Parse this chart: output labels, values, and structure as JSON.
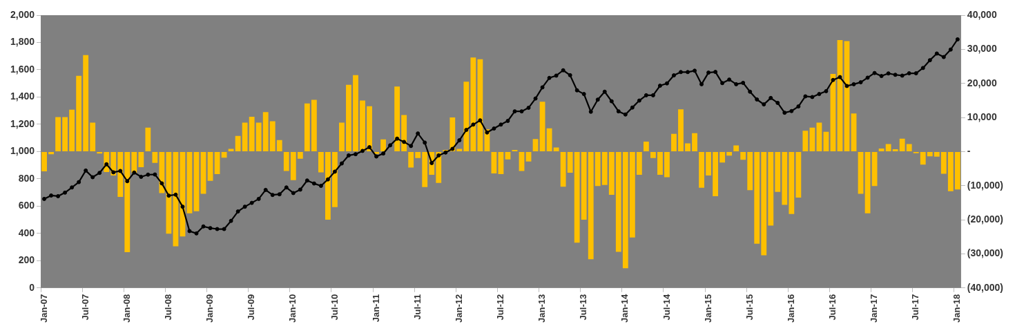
{
  "chart_data": {
    "type": "bar",
    "categories": [
      "Jan-07",
      null,
      null,
      null,
      null,
      null,
      "Jul-07",
      null,
      null,
      null,
      null,
      null,
      "Jan-08",
      null,
      null,
      null,
      null,
      null,
      "Jul-08",
      null,
      null,
      null,
      null,
      null,
      "Jan-09",
      null,
      null,
      null,
      null,
      null,
      "Jul-09",
      null,
      null,
      null,
      null,
      null,
      "Jan-10",
      null,
      null,
      null,
      null,
      null,
      "Jul-10",
      null,
      null,
      null,
      null,
      null,
      "Jan-11",
      null,
      null,
      null,
      null,
      null,
      "Jul-11",
      null,
      null,
      null,
      null,
      null,
      "Jan-12",
      null,
      null,
      null,
      null,
      null,
      "Jul-12",
      null,
      null,
      null,
      null,
      null,
      "Jan-13",
      null,
      null,
      null,
      null,
      null,
      "Jul-13",
      null,
      null,
      null,
      null,
      null,
      "Jan-14",
      null,
      null,
      null,
      null,
      null,
      "Jul-14",
      null,
      null,
      null,
      null,
      null,
      "Jan-15",
      null,
      null,
      null,
      null,
      null,
      "Jul-15",
      null,
      null,
      null,
      null,
      null,
      "Jan-16",
      null,
      null,
      null,
      null,
      null,
      "Jul-16",
      null,
      null,
      null,
      null,
      null,
      "Jan-17",
      null,
      null,
      null,
      null,
      null,
      "Jul-17",
      null,
      null,
      null,
      null,
      null,
      "Jan-18"
    ],
    "series": [
      {
        "axis": "y2",
        "color": "#ffc000",
        "values": [
          -5800,
          -800,
          10100,
          10100,
          12300,
          22200,
          28300,
          8500,
          -600,
          -6000,
          -7000,
          -13300,
          -29500,
          -6200,
          -4600,
          7000,
          -3300,
          -12200,
          -24100,
          -27800,
          -24900,
          -18100,
          -17500,
          -12400,
          -8600,
          -6600,
          -1800,
          800,
          4600,
          8500,
          10200,
          8500,
          11600,
          8900,
          3400,
          -5700,
          -8400,
          -2100,
          14100,
          15200,
          -6100,
          -20000,
          -16300,
          8500,
          19600,
          22400,
          15000,
          13300,
          -700,
          3600,
          null,
          19100,
          10700,
          -4700,
          -1900,
          -10400,
          -6800,
          -9200,
          500,
          10000,
          800,
          20500,
          27600,
          27100,
          6500,
          -6400,
          -6600,
          -2300,
          500,
          -5700,
          -2900,
          3700,
          14600,
          6800,
          1200,
          -10300,
          -6200,
          -26700,
          -20000,
          -31600,
          -10100,
          -9800,
          -12700,
          -29400,
          -34200,
          -25200,
          -6800,
          2900,
          -1900,
          -6800,
          -7500,
          5200,
          12400,
          2400,
          5400,
          -10600,
          -7000,
          -13100,
          -3200,
          -1200,
          1800,
          -2400,
          -11300,
          -27000,
          -30400,
          -21700,
          -11800,
          -15600,
          -18300,
          -13500,
          6100,
          7000,
          8500,
          5800,
          22800,
          32700,
          32400,
          11200,
          -12400,
          -18100,
          -10100,
          900,
          2200,
          700,
          3800,
          2200,
          -500,
          -3800,
          -1400,
          -1500,
          -6500,
          -11600,
          -11100
        ]
      },
      {
        "type": "line",
        "axis": "y",
        "color": "#000000",
        "values": [
          653,
          678,
          673,
          699,
          737,
          776,
          861,
          812,
          844,
          907,
          848,
          858,
          783,
          846,
          815,
          831,
          832,
          767,
          677,
          684,
          596,
          417,
          400,
          451,
          439,
          432,
          432,
          492,
          561,
          596,
          624,
          653,
          719,
          682,
          687,
          737,
          696,
          721,
          788,
          766,
          749,
          796,
          853,
          913,
          972,
          981,
          1005,
          1032,
          964,
          986,
          1046,
          1095,
          1071,
          1041,
          1133,
          1066,
          916,
          972,
          993,
          1020,
          1083,
          1159,
          1198,
          1229,
          1140,
          1169,
          1198,
          1225,
          1295,
          1295,
          1321,
          1389,
          1471,
          1540,
          1557,
          1596,
          1560,
          1449,
          1422,
          1292,
          1381,
          1439,
          1369,
          1295,
          1272,
          1323,
          1374,
          1413,
          1413,
          1483,
          1500,
          1559,
          1583,
          1583,
          1593,
          1494,
          1579,
          1584,
          1502,
          1528,
          1494,
          1504,
          1439,
          1382,
          1346,
          1393,
          1357,
          1285,
          1297,
          1331,
          1405,
          1400,
          1422,
          1443,
          1525,
          1546,
          1481,
          1494,
          1508,
          1542,
          1576,
          1554,
          1573,
          1563,
          1557,
          1574,
          1574,
          1613,
          1670,
          1719,
          1693,
          1748,
          1823
        ]
      }
    ],
    "ylim": [
      0,
      2000
    ],
    "yticks": [
      0,
      200,
      400,
      600,
      800,
      {
        "value": 1000,
        "label": "1,000"
      },
      {
        "value": 1200,
        "label": "1,200"
      },
      {
        "value": 1400,
        "label": "1,400"
      },
      {
        "value": 1600,
        "label": "1,600"
      },
      {
        "value": 1800,
        "label": "1,800"
      },
      {
        "value": 2000,
        "label": "2,000"
      }
    ],
    "y2lim": [
      -40000,
      40000
    ],
    "y2ticks": [
      {
        "value": -40000,
        "label": "(40,000)"
      },
      {
        "value": -30000,
        "label": "(30,000)"
      },
      {
        "value": -20000,
        "label": "(20,000)"
      },
      {
        "value": -10000,
        "label": "(10,000)"
      },
      {
        "value": 0,
        "label": "-"
      },
      {
        "value": 10000,
        "label": "10,000"
      },
      {
        "value": 20000,
        "label": "20,000"
      },
      {
        "value": 30000,
        "label": "30,000"
      },
      {
        "value": 40000,
        "label": "40,000"
      }
    ],
    "marker": "circle"
  }
}
